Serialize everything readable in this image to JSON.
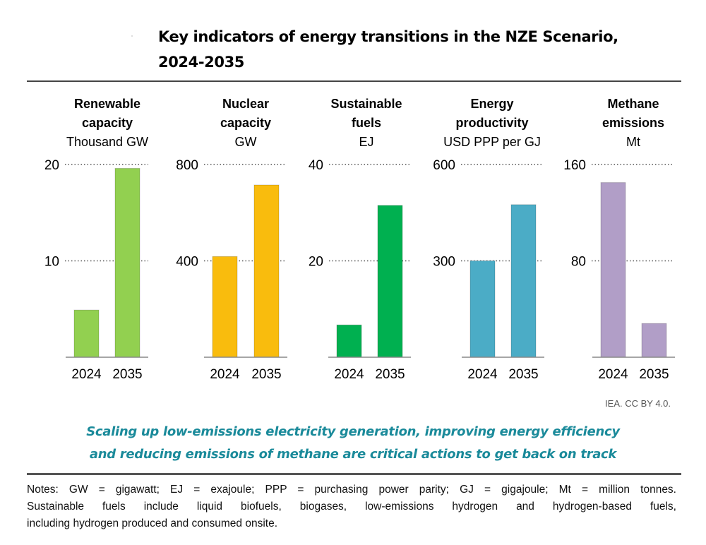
{
  "title": {
    "line1": "Key indicators of energy transitions in the NZE Scenario,",
    "line2": "2024-2035"
  },
  "credit": "IEA. CC BY 4.0.",
  "message": {
    "line1": "Scaling up low-emissions electricity generation, improving energy efficiency",
    "line2": "and reducing emissions of methane are critical actions to get back on track",
    "color": "#1a8a9a"
  },
  "notes": {
    "line1": "Notes: GW = gigawatt; EJ = exajoule; PPP = purchasing power parity; GJ = gigajoule; Mt = million tonnes.",
    "line2": "Sustainable fuels include liquid biofuels, biogases, low-emissions hydrogen and hydrogen-based fuels,",
    "line3": "including hydrogen produced and consumed onsite."
  },
  "chart_data": [
    {
      "type": "bar",
      "title": "Renewable capacity",
      "unit": "Thousand GW",
      "categories": [
        "2024",
        "2035"
      ],
      "values": [
        4.9,
        19.6
      ],
      "yticks": [
        10,
        20
      ],
      "ylim": [
        0,
        20
      ],
      "color": "#92d050",
      "grid": "dotted"
    },
    {
      "type": "bar",
      "title": "Nuclear capacity",
      "unit": "GW",
      "categories": [
        "2024",
        "2035"
      ],
      "values": [
        418,
        715
      ],
      "yticks": [
        400,
        800
      ],
      "ylim": [
        0,
        800
      ],
      "color": "#f9bc0d",
      "grid": "dotted"
    },
    {
      "type": "bar",
      "title": "Sustainable fuels",
      "unit": "EJ",
      "categories": [
        "2024",
        "2035"
      ],
      "values": [
        6.7,
        31.5
      ],
      "yticks": [
        20,
        40
      ],
      "ylim": [
        0,
        40
      ],
      "color": "#00b050",
      "grid": "dotted"
    },
    {
      "type": "bar",
      "title": "Energy productivity",
      "unit": "USD PPP per GJ",
      "categories": [
        "2024",
        "2035"
      ],
      "values": [
        300,
        475
      ],
      "yticks": [
        300,
        600
      ],
      "ylim": [
        0,
        600
      ],
      "color": "#4bacc6",
      "grid": "dotted"
    },
    {
      "type": "bar",
      "title": "Methane emissions",
      "unit": "Mt",
      "categories": [
        "2024",
        "2035"
      ],
      "values": [
        145,
        28
      ],
      "yticks": [
        80,
        160
      ],
      "ylim": [
        0,
        160
      ],
      "color": "#b19ec7",
      "grid": "dotted"
    }
  ]
}
